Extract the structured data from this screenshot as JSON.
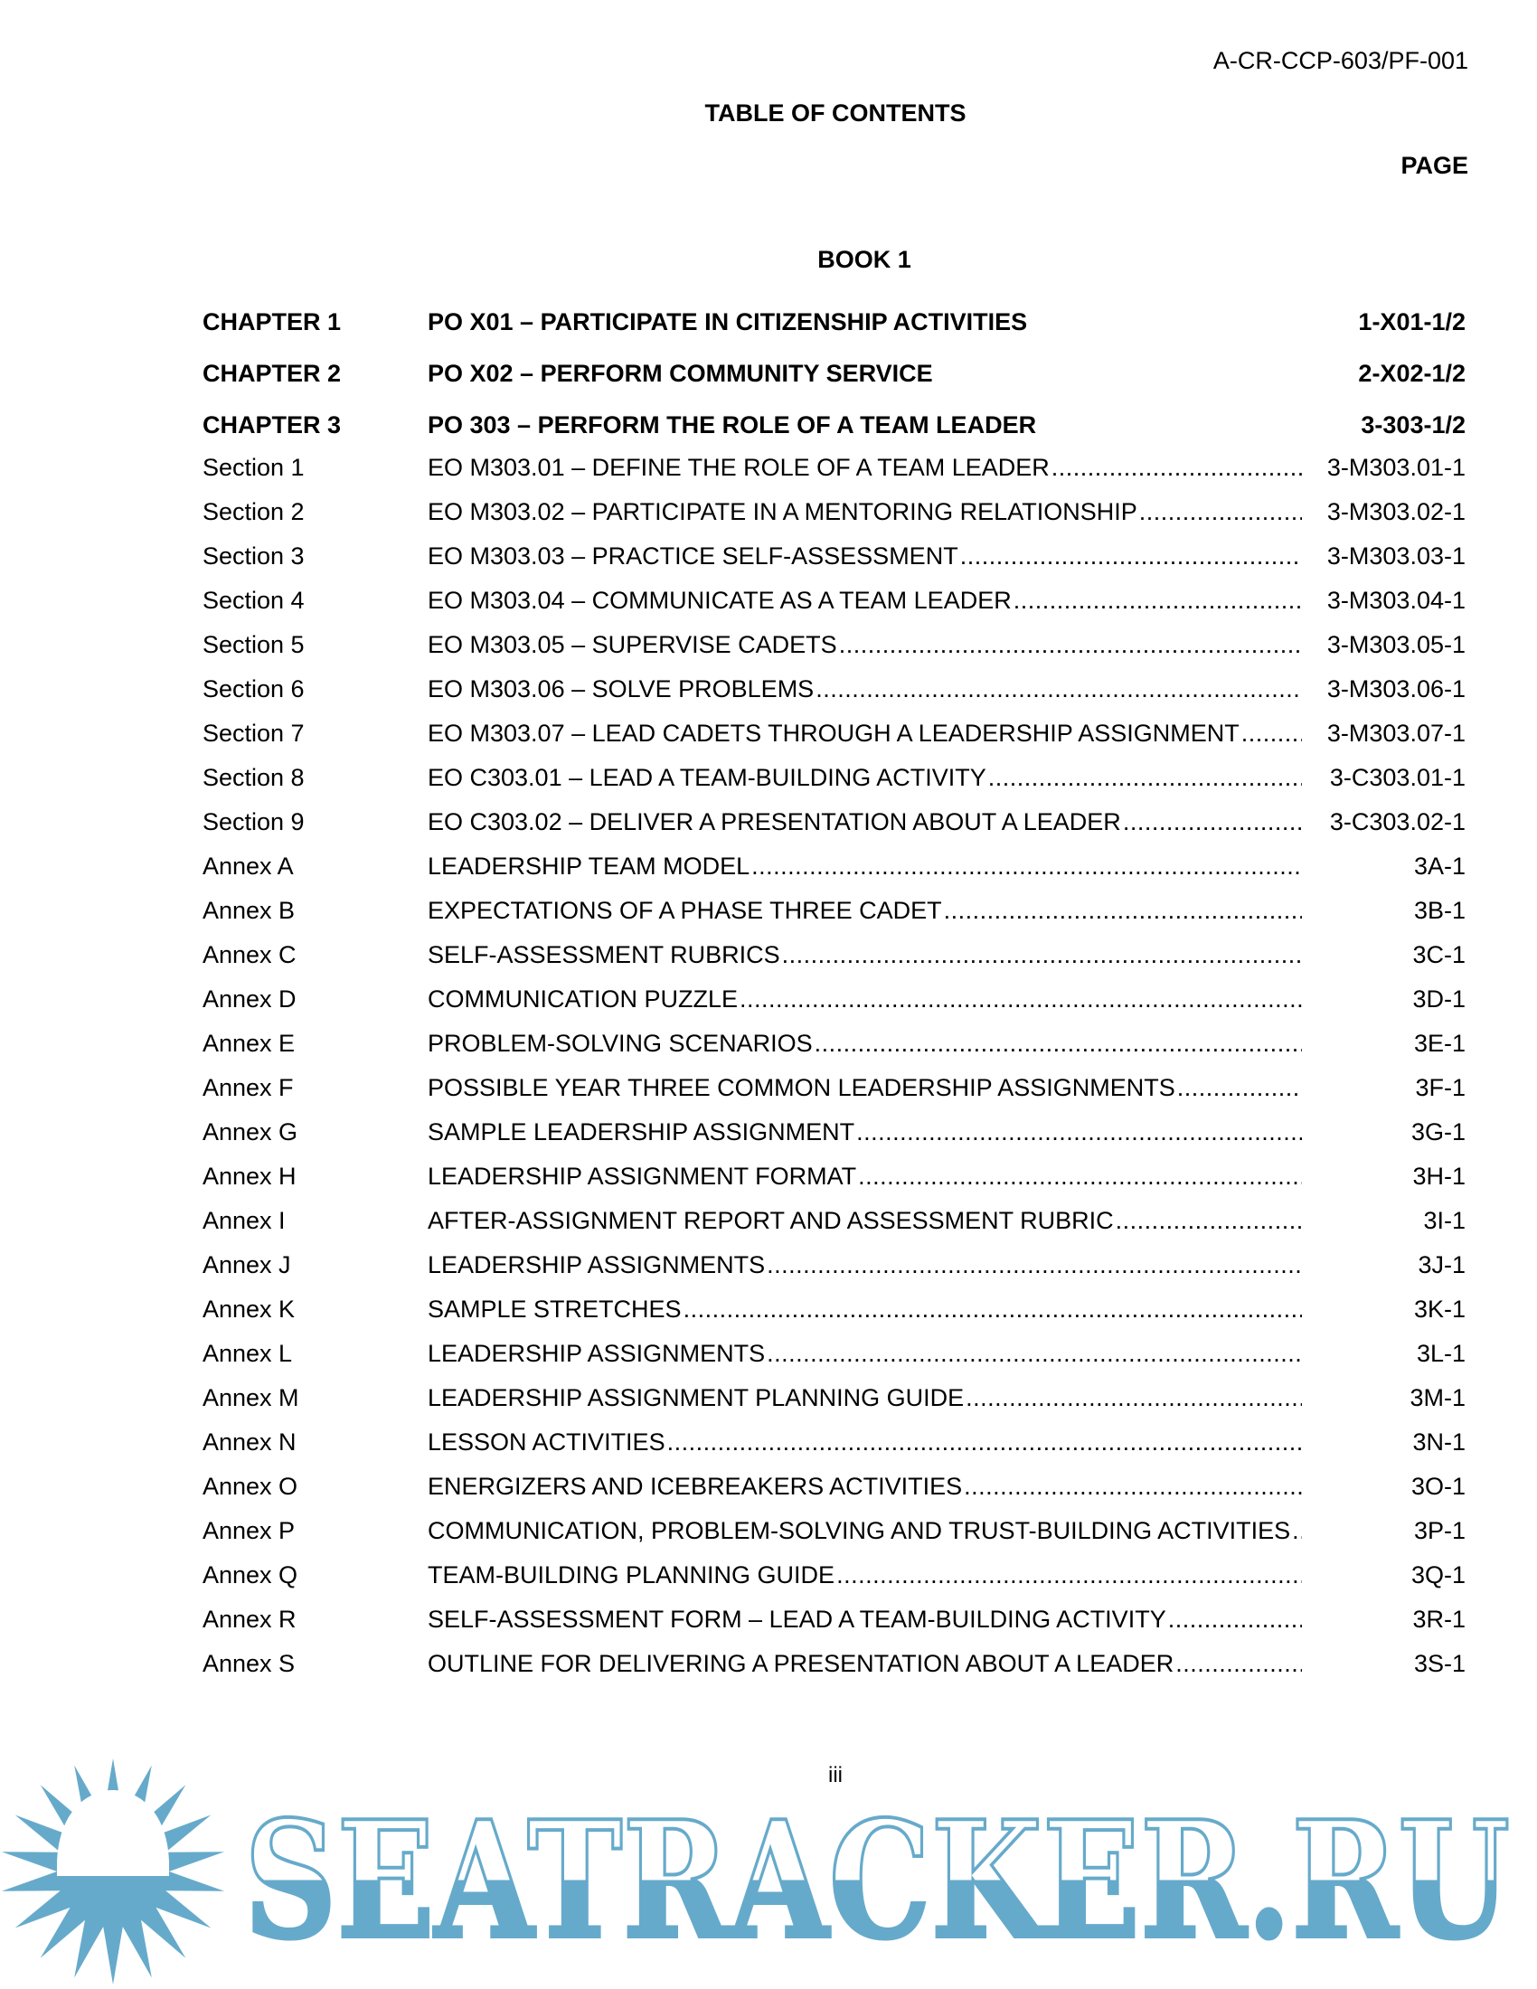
{
  "header": {
    "doc_id": "A-CR-CCP-603/PF-001",
    "title": "TABLE OF CONTENTS",
    "page_label": "PAGE"
  },
  "book": "BOOK 1",
  "chapters": [
    {
      "label": "CHAPTER 1",
      "title": "PO X01 – PARTICIPATE IN CITIZENSHIP ACTIVITIES",
      "page": "1-X01-1/2"
    },
    {
      "label": "CHAPTER 2",
      "title": "PO X02 – PERFORM COMMUNITY SERVICE",
      "page": "2-X02-1/2"
    },
    {
      "label": "CHAPTER 3",
      "title": "PO 303 – PERFORM THE ROLE OF A TEAM LEADER",
      "page": "3-303-1/2"
    }
  ],
  "entries": [
    {
      "label": "Section 1",
      "title": "EO M303.01 – DEFINE THE ROLE OF A TEAM LEADER",
      "page": "3-M303.01-1"
    },
    {
      "label": "Section 2",
      "title": "EO M303.02 – PARTICIPATE IN A MENTORING RELATIONSHIP",
      "page": "3-M303.02-1"
    },
    {
      "label": "Section 3",
      "title": "EO M303.03 – PRACTICE SELF-ASSESSMENT",
      "page": "3-M303.03-1"
    },
    {
      "label": "Section 4",
      "title": "EO M303.04 – COMMUNICATE AS A TEAM LEADER",
      "page": "3-M303.04-1"
    },
    {
      "label": "Section 5",
      "title": "EO M303.05 – SUPERVISE CADETS",
      "page": "3-M303.05-1"
    },
    {
      "label": "Section 6",
      "title": "EO M303.06 – SOLVE PROBLEMS",
      "page": "3-M303.06-1"
    },
    {
      "label": "Section 7",
      "title": "EO M303.07 – LEAD CADETS THROUGH A LEADERSHIP ASSIGNMENT",
      "page": "3-M303.07-1"
    },
    {
      "label": "Section 8",
      "title": "EO C303.01 – LEAD A TEAM-BUILDING ACTIVITY",
      "page": "3-C303.01-1"
    },
    {
      "label": "Section 9",
      "title": "EO C303.02 – DELIVER A PRESENTATION ABOUT A LEADER",
      "page": "3-C303.02-1"
    },
    {
      "label": "Annex A",
      "title": "LEADERSHIP TEAM MODEL",
      "page": "3A-1"
    },
    {
      "label": "Annex B",
      "title": "EXPECTATIONS OF A PHASE THREE CADET",
      "page": "3B-1"
    },
    {
      "label": "Annex C",
      "title": "SELF-ASSESSMENT RUBRICS",
      "page": "3C-1"
    },
    {
      "label": "Annex D",
      "title": "COMMUNICATION PUZZLE",
      "page": "3D-1"
    },
    {
      "label": "Annex E",
      "title": "PROBLEM-SOLVING SCENARIOS",
      "page": "3E-1"
    },
    {
      "label": "Annex F",
      "title": "POSSIBLE YEAR THREE COMMON LEADERSHIP ASSIGNMENTS",
      "page": "3F-1"
    },
    {
      "label": "Annex G",
      "title": "SAMPLE LEADERSHIP ASSIGNMENT",
      "page": "3G-1"
    },
    {
      "label": "Annex H",
      "title": "LEADERSHIP ASSIGNMENT FORMAT",
      "page": "3H-1"
    },
    {
      "label": "Annex I",
      "title": "AFTER-ASSIGNMENT REPORT AND ASSESSMENT RUBRIC",
      "page": "3I-1"
    },
    {
      "label": "Annex J",
      "title": "LEADERSHIP ASSIGNMENTS",
      "page": "3J-1"
    },
    {
      "label": "Annex K",
      "title": "SAMPLE STRETCHES",
      "page": "3K-1"
    },
    {
      "label": "Annex L",
      "title": "LEADERSHIP ASSIGNMENTS",
      "page": "3L-1"
    },
    {
      "label": "Annex M",
      "title": "LEADERSHIP ASSIGNMENT PLANNING GUIDE",
      "page": "3M-1"
    },
    {
      "label": "Annex N",
      "title": "LESSON ACTIVITIES",
      "page": "3N-1"
    },
    {
      "label": "Annex O",
      "title": "ENERGIZERS AND ICEBREAKERS ACTIVITIES",
      "page": "3O-1"
    },
    {
      "label": "Annex P",
      "title": "COMMUNICATION, PROBLEM-SOLVING AND TRUST-BUILDING ACTIVITIES",
      "page": "3P-1"
    },
    {
      "label": "Annex Q",
      "title": "TEAM-BUILDING PLANNING GUIDE",
      "page": "3Q-1"
    },
    {
      "label": "Annex R",
      "title": "SELF-ASSESSMENT FORM – LEAD A TEAM-BUILDING ACTIVITY",
      "page": "3R-1"
    },
    {
      "label": "Annex S",
      "title": "OUTLINE FOR DELIVERING A PRESENTATION ABOUT A LEADER",
      "page": "3S-1"
    }
  ],
  "footer": {
    "page_number": "iii"
  },
  "watermark": {
    "text": "SEATRACKER.RU",
    "color": "#66aacb",
    "icon": "sun-icon"
  }
}
